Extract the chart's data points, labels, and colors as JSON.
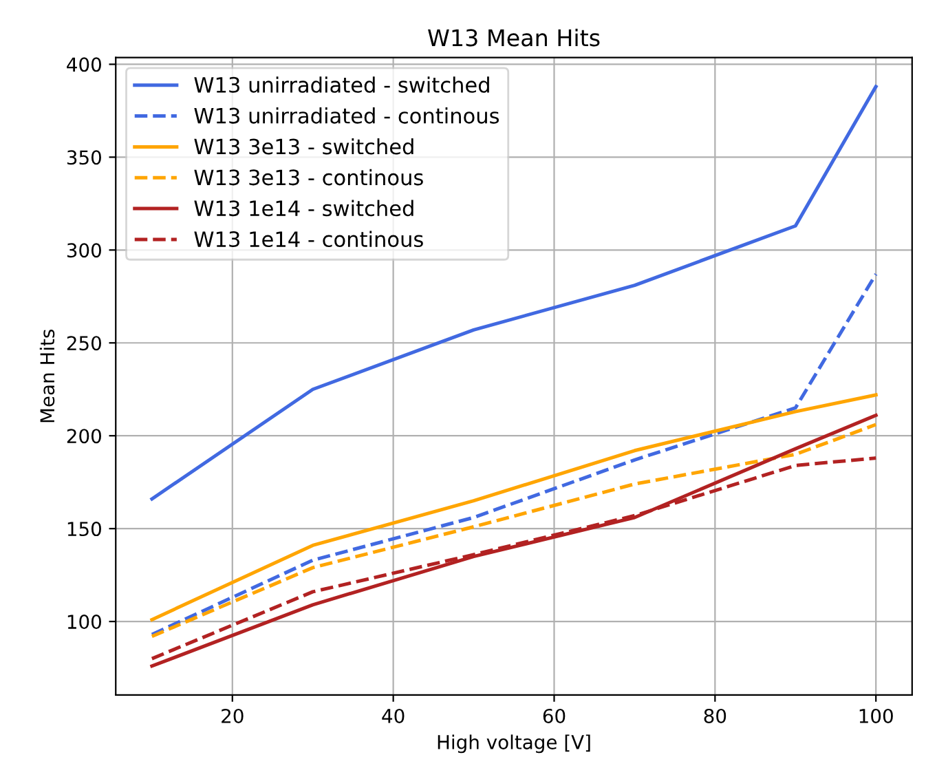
{
  "chart_data": {
    "type": "line",
    "title": "W13 Mean Hits",
    "xlabel": "High voltage [V]",
    "ylabel": "Mean Hits",
    "x": [
      10,
      30,
      50,
      70,
      90,
      100
    ],
    "series": [
      {
        "name": "W13 unirradiated - switched",
        "color": "#4169e1",
        "line_style": "solid",
        "values": [
          166,
          225,
          257,
          281,
          313,
          388
        ]
      },
      {
        "name": "W13 unirradiated - continous",
        "color": "#4169e1",
        "line_style": "dashed",
        "values": [
          93,
          133,
          156,
          187,
          215,
          287
        ]
      },
      {
        "name": "W13 3e13 - switched",
        "color": "#ffa500",
        "line_style": "solid",
        "values": [
          101,
          141,
          165,
          192,
          213,
          222
        ]
      },
      {
        "name": "W13 3e13 - continous",
        "color": "#ffa500",
        "line_style": "dashed",
        "values": [
          92,
          129,
          151,
          174,
          190,
          206
        ]
      },
      {
        "name": "W13 1e14 - switched",
        "color": "#b22222",
        "line_style": "solid",
        "values": [
          76,
          109,
          135,
          156,
          193,
          211
        ]
      },
      {
        "name": "W13 1e14 - continous",
        "color": "#b22222",
        "line_style": "dashed",
        "values": [
          80,
          116,
          136,
          157,
          184,
          188
        ]
      }
    ],
    "xlim": [
      5.5,
      104.5
    ],
    "xticks": [
      20,
      40,
      60,
      80,
      100
    ],
    "ylim": [
      60.4,
      403.6
    ],
    "yticks": [
      100,
      150,
      200,
      250,
      300,
      350,
      400
    ],
    "grid": true,
    "legend": "top left",
    "marker": "none"
  }
}
